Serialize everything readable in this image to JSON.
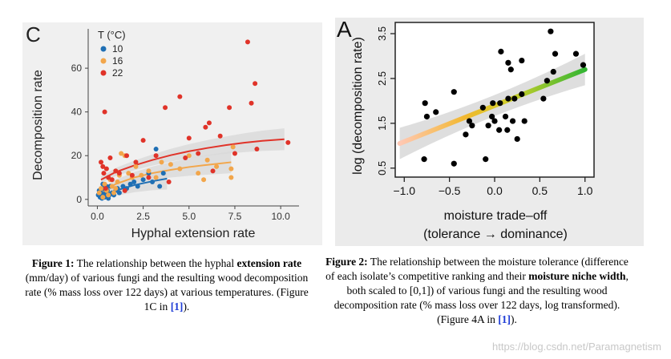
{
  "chart_data": [
    {
      "panel_label": "C",
      "type": "scatter",
      "xlabel": "Hyphal extension rate",
      "ylabel": "Decomposition rate",
      "xlim": [
        -0.5,
        11
      ],
      "ylim": [
        -3,
        78
      ],
      "xticks": [
        "0.0",
        "2.5",
        "5.0",
        "7.5",
        "10.0"
      ],
      "yticks": [
        "0",
        "20",
        "40",
        "60"
      ],
      "legend": {
        "title": "T (°C)",
        "placement": "top-left"
      },
      "series": [
        {
          "name": "10",
          "color": "#1f6fb4",
          "points": [
            [
              0.05,
              2
            ],
            [
              0.1,
              4
            ],
            [
              0.15,
              1
            ],
            [
              0.2,
              3
            ],
            [
              0.25,
              0.5
            ],
            [
              0.3,
              2
            ],
            [
              0.35,
              5
            ],
            [
              0.4,
              1
            ],
            [
              0.45,
              3
            ],
            [
              0.5,
              2
            ],
            [
              0.55,
              4
            ],
            [
              0.6,
              0.5
            ],
            [
              0.65,
              2
            ],
            [
              0.7,
              6
            ],
            [
              0.8,
              3
            ],
            [
              0.9,
              2
            ],
            [
              1.0,
              4
            ],
            [
              1.1,
              5
            ],
            [
              1.2,
              3
            ],
            [
              1.4,
              6
            ],
            [
              1.6,
              5
            ],
            [
              1.8,
              7
            ],
            [
              2.0,
              8
            ],
            [
              2.2,
              6
            ],
            [
              2.5,
              9
            ],
            [
              2.8,
              12
            ],
            [
              3.0,
              8
            ],
            [
              3.2,
              23
            ],
            [
              3.4,
              6
            ],
            [
              3.6,
              12
            ],
            [
              0.3,
              7
            ],
            [
              0.5,
              6
            ]
          ],
          "fit": [
            [
              0.1,
              1.5
            ],
            [
              1,
              4
            ],
            [
              2,
              6.5
            ],
            [
              3,
              8.3
            ],
            [
              3.8,
              9.5
            ]
          ]
        },
        {
          "name": "16",
          "color": "#f2a64b",
          "points": [
            [
              0.1,
              3
            ],
            [
              0.2,
              5
            ],
            [
              0.3,
              1
            ],
            [
              0.4,
              7
            ],
            [
              0.5,
              4
            ],
            [
              0.6,
              2
            ],
            [
              0.7,
              9
            ],
            [
              0.8,
              6
            ],
            [
              0.9,
              3
            ],
            [
              1.0,
              13
            ],
            [
              1.1,
              8
            ],
            [
              1.2,
              11
            ],
            [
              1.3,
              21
            ],
            [
              1.5,
              20
            ],
            [
              1.7,
              12
            ],
            [
              1.9,
              10
            ],
            [
              2.1,
              15
            ],
            [
              2.4,
              11
            ],
            [
              2.8,
              13
            ],
            [
              3.2,
              10
            ],
            [
              3.5,
              17
            ],
            [
              4.0,
              16
            ],
            [
              4.5,
              14
            ],
            [
              5.0,
              20
            ],
            [
              5.5,
              12
            ],
            [
              6.0,
              18
            ],
            [
              6.5,
              15
            ],
            [
              7.3,
              10
            ],
            [
              7.3,
              14
            ],
            [
              7.4,
              24
            ],
            [
              5.8,
              9
            ],
            [
              1.0,
              5
            ]
          ],
          "fit": [
            [
              0.1,
              3
            ],
            [
              1,
              7
            ],
            [
              2,
              10
            ],
            [
              3,
              12
            ],
            [
              4,
              13.5
            ],
            [
              5,
              14.8
            ],
            [
              6,
              15.8
            ],
            [
              7.3,
              17
            ]
          ]
        },
        {
          "name": "22",
          "color": "#e03329",
          "points": [
            [
              0.2,
              17
            ],
            [
              0.3,
              15
            ],
            [
              0.35,
              12
            ],
            [
              0.4,
              40
            ],
            [
              0.45,
              5
            ],
            [
              0.5,
              14
            ],
            [
              0.6,
              10
            ],
            [
              0.7,
              19
            ],
            [
              0.8,
              9
            ],
            [
              1.0,
              13
            ],
            [
              1.2,
              12
            ],
            [
              1.5,
              4
            ],
            [
              1.6,
              20
            ],
            [
              1.9,
              11
            ],
            [
              2.1,
              17
            ],
            [
              2.5,
              27
            ],
            [
              2.8,
              10
            ],
            [
              3.2,
              20
            ],
            [
              3.7,
              42
            ],
            [
              3.9,
              8
            ],
            [
              4.5,
              47
            ],
            [
              4.8,
              19
            ],
            [
              5.0,
              28
            ],
            [
              5.5,
              21
            ],
            [
              5.9,
              33
            ],
            [
              6.1,
              35
            ],
            [
              6.3,
              13
            ],
            [
              6.7,
              29
            ],
            [
              7.2,
              42
            ],
            [
              7.5,
              21
            ],
            [
              8.2,
              72
            ],
            [
              8.4,
              44
            ],
            [
              8.6,
              53
            ],
            [
              8.7,
              23
            ],
            [
              10.4,
              26
            ]
          ],
          "fit": [
            [
              0.2,
              9
            ],
            [
              1,
              12.5
            ],
            [
              2,
              15.5
            ],
            [
              3,
              18
            ],
            [
              4,
              20.2
            ],
            [
              5,
              22
            ],
            [
              6,
              23.5
            ],
            [
              7,
              24.8
            ],
            [
              8,
              25.9
            ],
            [
              9,
              26.8
            ],
            [
              10.2,
              27.5
            ]
          ]
        }
      ]
    },
    {
      "panel_label": "A",
      "type": "scatter",
      "xlabel": "moisture trade–off",
      "xlabel2": "(tolerance → dominance)",
      "ylabel": "log (decomposition rate)",
      "xlim": [
        -1.1,
        1.1
      ],
      "ylim": [
        0.3,
        3.75
      ],
      "xticks": [
        "−1.0",
        "−0.5",
        "0.0",
        "0.5",
        "1.0"
      ],
      "yticks": [
        "0.5",
        "1.5",
        "2.5",
        "3.5"
      ],
      "series": [
        {
          "name": "",
          "color": "#000000",
          "points": [
            [
              -0.77,
              1.95
            ],
            [
              -0.75,
              1.65
            ],
            [
              -0.78,
              0.7
            ],
            [
              -0.65,
              1.75
            ],
            [
              -0.45,
              2.2
            ],
            [
              -0.45,
              0.6
            ],
            [
              -0.32,
              1.25
            ],
            [
              -0.28,
              1.55
            ],
            [
              -0.25,
              1.45
            ],
            [
              -0.13,
              1.85
            ],
            [
              -0.1,
              0.7
            ],
            [
              -0.07,
              1.45
            ],
            [
              -0.03,
              1.65
            ],
            [
              -0.02,
              1.95
            ],
            [
              0.0,
              1.55
            ],
            [
              0.05,
              1.35
            ],
            [
              0.06,
              1.95
            ],
            [
              0.07,
              3.1
            ],
            [
              0.12,
              1.65
            ],
            [
              0.14,
              1.35
            ],
            [
              0.15,
              2.05
            ],
            [
              0.15,
              2.85
            ],
            [
              0.18,
              2.7
            ],
            [
              0.2,
              1.55
            ],
            [
              0.22,
              2.05
            ],
            [
              0.25,
              1.15
            ],
            [
              0.3,
              2.15
            ],
            [
              0.3,
              2.9
            ],
            [
              0.33,
              1.55
            ],
            [
              0.54,
              2.05
            ],
            [
              0.58,
              2.45
            ],
            [
              0.62,
              3.55
            ],
            [
              0.65,
              2.65
            ],
            [
              0.67,
              3.05
            ],
            [
              0.9,
              3.05
            ],
            [
              0.98,
              2.8
            ]
          ],
          "fit": [
            [
              -1.05,
              1.05
            ],
            [
              1.0,
              2.7
            ]
          ]
        }
      ]
    }
  ],
  "caption1": {
    "prefix": "Figure 1:",
    "t1": " The relationship between the hyphal ",
    "b1": "extension rate",
    "t2": " (mm/day) of various fungi and the resulting wood decomposition rate (% mass loss over 122 days) at various temperatures. (Figure 1C in ",
    "ref": "[1]",
    "t3": ")."
  },
  "caption2": {
    "prefix": "Figure 2:",
    "t1": " The relationship between the moisture tolerance (difference of each isolate’s competitive ranking and their ",
    "b1": "moisture niche width",
    "t2": ", both scaled to [0,1]) of various fungi and the resulting wood decomposition rate (% mass loss over 122 days, log transformed). (Figure 4A in ",
    "ref": "[1]",
    "t3": ")."
  },
  "watermark": "https://blog.csdn.net/Paramagnetism",
  "colors": {
    "grad_start": "#ffc8b4",
    "grad_mid": "#f2b830",
    "grad_end": "#33b533",
    "ribbon": "#d8d8d8",
    "left_bg": "#f0f0f0",
    "right_bg": "#ebebeb"
  }
}
